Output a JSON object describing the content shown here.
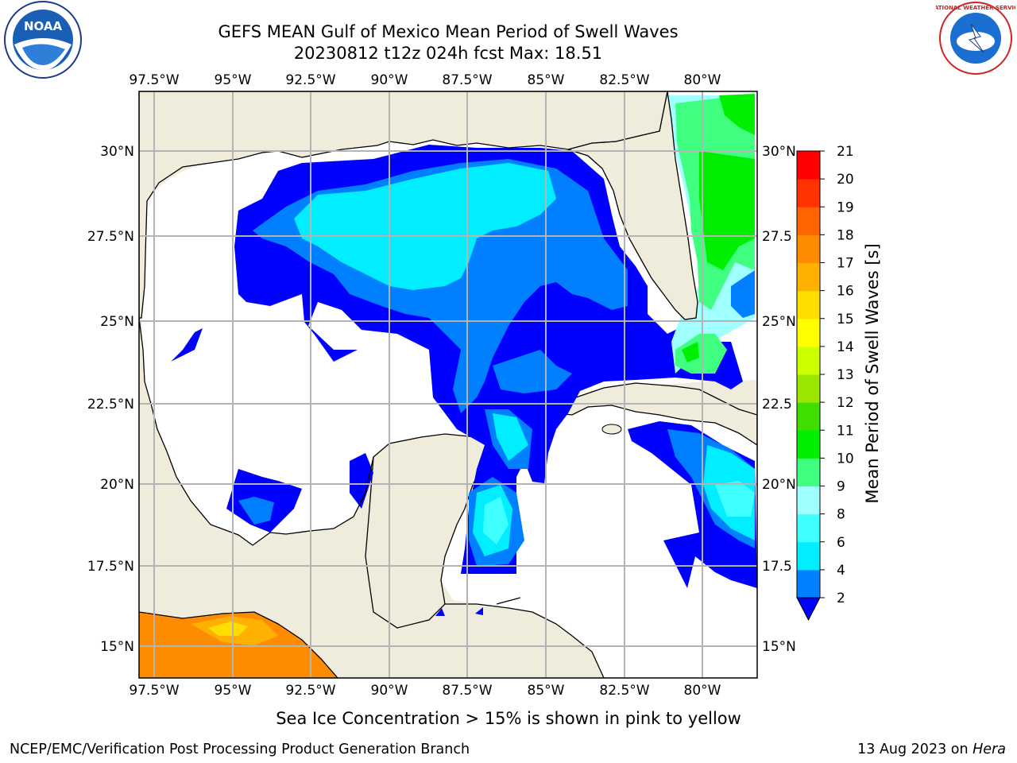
{
  "title": {
    "line1": "GEFS MEAN Gulf of Mexico Mean Period of Swell Waves",
    "line2": "20230812 t12z 024h fcst   Max: 18.51"
  },
  "map": {
    "lon_labels": [
      "97.5°W",
      "95°W",
      "92.5°W",
      "90°W",
      "87.5°W",
      "85°W",
      "82.5°W",
      "80°W"
    ],
    "lat_labels_left": [
      "30°N",
      "27.5°N",
      "25°N",
      "22.5°N",
      "20°N",
      "17.5°N",
      "15°N"
    ],
    "lat_labels_right": [
      "30°N",
      "27.5",
      "25°N",
      "22.5",
      "20°N",
      "17.5",
      "15°N"
    ],
    "colors": {
      "land": "#efecdc",
      "ocean": "#ffffff",
      "grid": "#b4b4b4",
      "coast": "#000000"
    }
  },
  "colorbar": {
    "label": "Mean Period of Swell Waves [s]",
    "ticks": [
      "2",
      "4",
      "6",
      "8",
      "9",
      "10",
      "11",
      "12",
      "13",
      "14",
      "15",
      "16",
      "17",
      "18",
      "19",
      "20",
      "21"
    ],
    "colors": [
      "#0000ff",
      "#0080ff",
      "#00eeff",
      "#40ffff",
      "#a0ffff",
      "#40ff80",
      "#00ee00",
      "#40dd00",
      "#9ae600",
      "#ccff00",
      "#ffff00",
      "#ffdd00",
      "#ffb000",
      "#ff8c00",
      "#ff6400",
      "#ff3200",
      "#ff0000"
    ]
  },
  "footnote": "Sea Ice Concentration > 15% is shown in pink to yellow",
  "credit_left": "NCEP/EMC/Verification Post Processing Product Generation Branch",
  "credit_right_prefix": "13 Aug 2023 on ",
  "credit_right_host": "Hera",
  "logos": {
    "noaa": "NOAA",
    "nws": "NATIONAL WEATHER SERVICE"
  }
}
